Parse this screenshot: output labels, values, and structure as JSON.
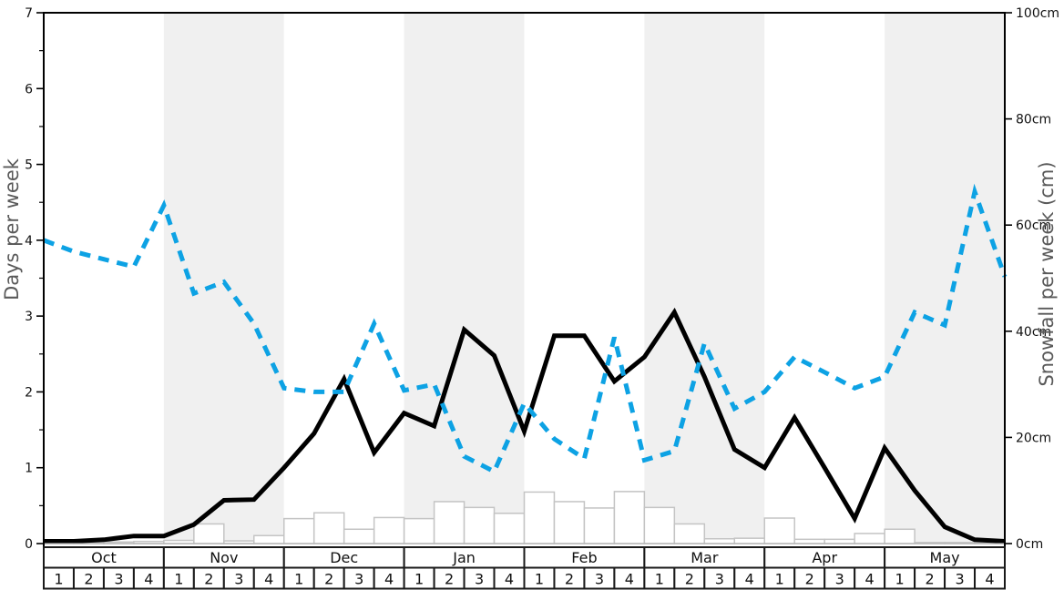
{
  "chart_data": {
    "type": "line",
    "title": "",
    "months": [
      "Oct",
      "Nov",
      "Dec",
      "Jan",
      "Feb",
      "Mar",
      "Apr",
      "May"
    ],
    "week_labels": [
      "1",
      "2",
      "3",
      "4"
    ],
    "categories": [
      "Oct-1",
      "Oct-2",
      "Oct-3",
      "Oct-4",
      "Nov-1",
      "Nov-2",
      "Nov-3",
      "Nov-4",
      "Dec-1",
      "Dec-2",
      "Dec-3",
      "Dec-4",
      "Jan-1",
      "Jan-2",
      "Jan-3",
      "Jan-4",
      "Feb-1",
      "Feb-2",
      "Feb-3",
      "Feb-4",
      "Mar-1",
      "Mar-2",
      "Mar-3",
      "Mar-4",
      "Apr-1",
      "Apr-2",
      "Apr-3",
      "Apr-4",
      "May-1",
      "May-2",
      "May-3",
      "May-4"
    ],
    "x_note": "line series have 33 points placed at the week-cell boundaries spanning the 32 labelled weeks",
    "series": [
      {
        "name": "black-solid-line",
        "axis": "left",
        "unit": "days",
        "style": "solid",
        "color": "#000000",
        "values": [
          0.03,
          0.03,
          0.05,
          0.1,
          0.1,
          0.25,
          0.57,
          0.58,
          1.0,
          1.45,
          2.17,
          1.2,
          1.72,
          1.55,
          2.82,
          2.48,
          1.48,
          2.74,
          2.74,
          2.14,
          2.46,
          3.05,
          2.2,
          1.24,
          1.0,
          1.66,
          1.0,
          0.33,
          1.26,
          0.7,
          0.22,
          0.05,
          0.03
        ]
      },
      {
        "name": "blue-dashed-line",
        "axis": "left",
        "unit": "days",
        "style": "dashed",
        "color": "#0da2e4",
        "values": [
          4.0,
          3.85,
          3.75,
          3.65,
          4.46,
          3.3,
          3.45,
          2.9,
          2.05,
          2.0,
          2.0,
          2.9,
          2.02,
          2.1,
          1.15,
          0.95,
          1.85,
          1.38,
          1.12,
          2.72,
          1.1,
          1.22,
          2.64,
          1.78,
          2.0,
          2.46,
          2.26,
          2.05,
          2.2,
          3.05,
          2.88,
          4.64,
          3.52
        ]
      }
    ],
    "bars": {
      "name": "snowfall-per-week-bars",
      "axis": "right",
      "unit": "cm",
      "fill": "#ffffff",
      "stroke": "#c4c4c4",
      "values": [
        0.3,
        0.3,
        0.3,
        0.4,
        0.6,
        3.7,
        0.5,
        1.5,
        4.7,
        5.8,
        2.7,
        4.9,
        4.7,
        7.9,
        6.8,
        5.7,
        9.7,
        7.9,
        6.7,
        9.8,
        6.8,
        3.7,
        0.9,
        1.0,
        4.8,
        0.8,
        0.8,
        1.9,
        2.7,
        0.2,
        0.2,
        0.2
      ]
    },
    "y_left": {
      "label": "Days per week",
      "min": 0,
      "max": 7,
      "tick_labels": [
        "0",
        "1",
        "2",
        "3",
        "4",
        "5",
        "6",
        "7"
      ],
      "minor_tick_interval": 0.5
    },
    "y_right": {
      "label": "Snowfall per week (cm)",
      "min_cm": 0,
      "max_cm": 100,
      "tick_labels": [
        "0cm",
        "20cm",
        "40cm",
        "60cm",
        "80cm",
        "100cm"
      ]
    },
    "shaded_months": [
      "Nov",
      "Jan",
      "Mar",
      "May"
    ],
    "colors": {
      "shaded_band": "#f0f0f0",
      "table_border": "#1a1a1a",
      "axis_title": "#595959",
      "tick_label": "#111111",
      "baseline": "#b3b3b3",
      "line_black": "#000000",
      "line_blue": "#0da2e4"
    },
    "legend": "none",
    "grid": "off"
  }
}
